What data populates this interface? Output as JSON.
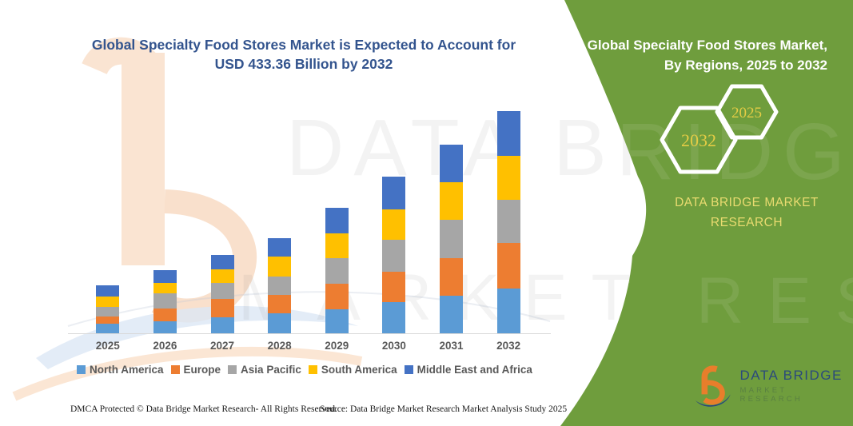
{
  "chart": {
    "title_line1": "Global Specialty Food Stores Market is Expected to Account for",
    "title_line2": "USD 433.36 Billion by 2032",
    "title_color": "#33548E"
  },
  "chart_data": {
    "type": "bar",
    "stacked": true,
    "title": "Global Specialty Food Stores Market is Expected to Account for USD 433.36 Billion by 2032",
    "unit": "USD Billion",
    "categories": [
      "2025",
      "2026",
      "2027",
      "2028",
      "2029",
      "2030",
      "2031",
      "2032"
    ],
    "series": [
      {
        "name": "North America",
        "color": "#5B9BD5",
        "values": [
          18.1,
          23.3,
          31.0,
          38.8,
          47.6,
          60.5,
          73.4,
          87.9
        ]
      },
      {
        "name": "Europe",
        "color": "#ED7D31",
        "values": [
          15.5,
          25.9,
          36.3,
          36.1,
          49.2,
          59.4,
          73.4,
          87.9
        ]
      },
      {
        "name": "Asia Pacific",
        "color": "#A6A6A6",
        "values": [
          18.6,
          28.4,
          31.0,
          36.1,
          49.2,
          63.1,
          74.0,
          85.3
        ]
      },
      {
        "name": "South America",
        "color": "#FFC000",
        "values": [
          20.2,
          20.8,
          25.7,
          38.8,
          49.2,
          58.5,
          73.4,
          85.3
        ]
      },
      {
        "name": "Middle East and Africa",
        "color": "#4472C4",
        "values": [
          20.6,
          25.7,
          28.5,
          35.2,
          49.2,
          64.7,
          72.9,
          86.96
        ]
      }
    ],
    "totals": [
      93.0,
      124.1,
      152.5,
      185.0,
      244.4,
      306.2,
      367.1,
      433.36
    ],
    "ylim": [
      0,
      450
    ],
    "y_axis_visible": false,
    "grid": false,
    "legend_position": "bottom"
  },
  "panel": {
    "bg_color": "#6F9D3D",
    "heading_line1": "Global Specialty Food Stores Market,",
    "heading_line2": "By Regions, 2025 to 2032",
    "hexagons": [
      {
        "label": "2032"
      },
      {
        "label": "2025"
      }
    ],
    "brand_line1": "DATA BRIDGE MARKET",
    "brand_line2": "RESEARCH"
  },
  "logo": {
    "name": "DATA BRIDGE",
    "subtext": "MARKET RESEARCH"
  },
  "footer": {
    "left": "DMCA Protected © Data Bridge Market Research-  All Rights Reserved.",
    "right": "Source: Data Bridge Market Research  Market Analysis Study 2025"
  },
  "watermark": {
    "line1": "DATA BRIDGE",
    "line2": "MARKET RESEARCH"
  }
}
